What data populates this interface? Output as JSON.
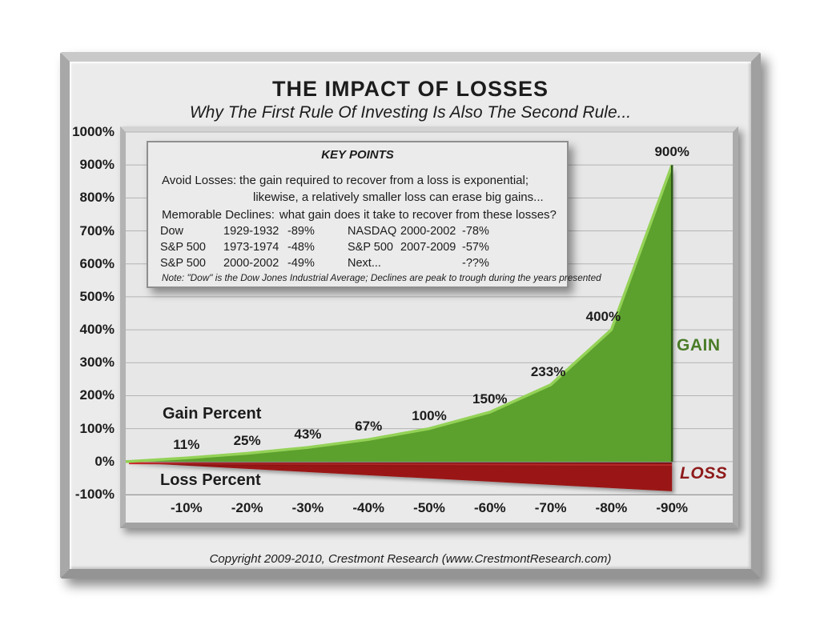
{
  "title": "THE IMPACT OF LOSSES",
  "subtitle": "Why The First Rule Of Investing Is Also The Second Rule...",
  "key_points": {
    "heading": "KEY POINTS",
    "avoid_label": "Avoid Losses:",
    "avoid_line1": "the gain required to recover from a loss is exponential;",
    "avoid_line2": "likewise, a relatively smaller loss can erase big gains...",
    "declines_label": "Memorable Declines:",
    "declines_question": "what gain does it take to recover from these losses?",
    "declines": [
      {
        "index": "Dow",
        "years": "1929-1932",
        "decline": "-89%"
      },
      {
        "index": "S&P 500",
        "years": "1973-1974",
        "decline": "-48%"
      },
      {
        "index": "S&P 500",
        "years": "2000-2002",
        "decline": "-49%"
      },
      {
        "index": "NASDAQ",
        "years": "2000-2002",
        "decline": "-78%"
      },
      {
        "index": "S&P 500",
        "years": "2007-2009",
        "decline": "-57%"
      },
      {
        "index": "Next...",
        "years": "",
        "decline": "-??%"
      }
    ],
    "note": "Note: \"Dow\" is the Dow Jones Industrial Average; Declines are peak to trough during the years presented"
  },
  "chart_data": {
    "type": "area",
    "title": "THE IMPACT OF LOSSES",
    "x_axis": {
      "values": [
        -10,
        -20,
        -30,
        -40,
        -50,
        -60,
        -70,
        -80,
        -90
      ],
      "categories": [
        "-10%",
        "-20%",
        "-30%",
        "-40%",
        "-50%",
        "-60%",
        "-70%",
        "-80%",
        "-90%"
      ]
    },
    "y_axis": {
      "ticks": [
        "1000%",
        "900%",
        "800%",
        "700%",
        "600%",
        "500%",
        "400%",
        "300%",
        "200%",
        "100%",
        "0%",
        "-100%"
      ],
      "ylim": [
        -100,
        1000
      ],
      "grid": true
    },
    "series": [
      {
        "name": "Gain Percent",
        "color": "#5ba02f",
        "highlight": "#94d257",
        "edge": "#2e5a17",
        "values": [
          11,
          25,
          43,
          67,
          100,
          150,
          233,
          400,
          900
        ],
        "point_labels": [
          "11%",
          "25%",
          "43%",
          "67%",
          "100%",
          "150%",
          "233%",
          "400%",
          "900%"
        ]
      },
      {
        "name": "Loss Percent",
        "color": "#9a1212",
        "highlight": "#ce2d2d",
        "values": [
          -10,
          -20,
          -30,
          -40,
          -50,
          -60,
          -70,
          -80,
          -90
        ]
      }
    ],
    "annotations": [
      {
        "text": "GAIN",
        "color": "#4a7c28"
      },
      {
        "text": "LOSS",
        "color": "#8e1a1a"
      }
    ],
    "legend_position": "none"
  },
  "footer": "Copyright 2009-2010, Crestmont Research (www.CrestmontResearch.com)"
}
